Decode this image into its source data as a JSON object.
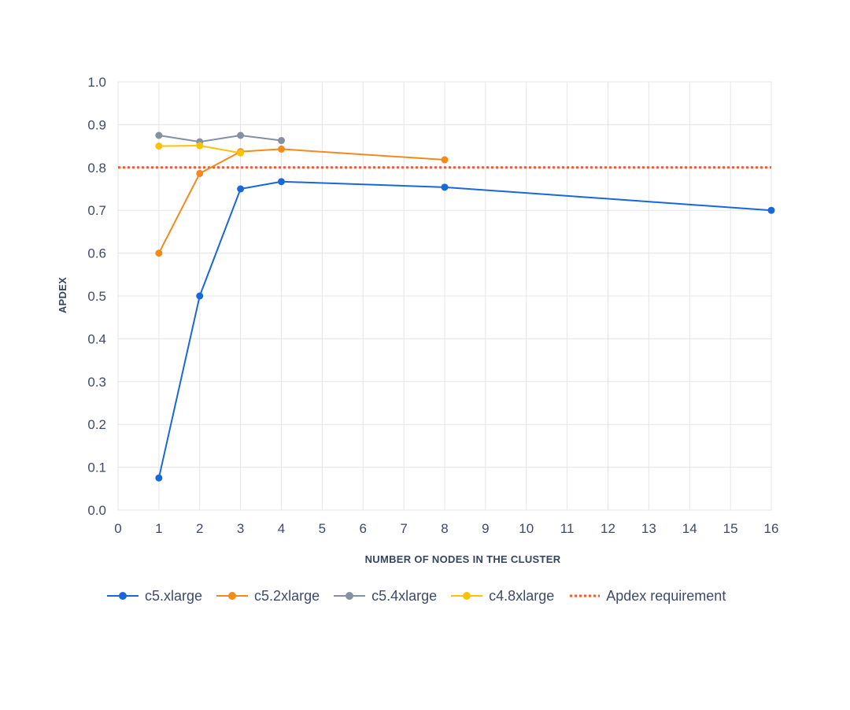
{
  "chart_data": {
    "type": "line",
    "xlabel": "NUMBER OF NODES IN THE CLUSTER",
    "ylabel": "APDEX",
    "x_ticks": [
      "0",
      "1",
      "2",
      "3",
      "4",
      "5",
      "6",
      "7",
      "8",
      "9",
      "10",
      "11",
      "12",
      "13",
      "14",
      "15",
      "16"
    ],
    "y_ticks": [
      "0.0",
      "0.1",
      "0.2",
      "0.3",
      "0.4",
      "0.5",
      "0.6",
      "0.7",
      "0.8",
      "0.9",
      "1.0"
    ],
    "ylim": [
      0,
      1
    ],
    "grid": true,
    "legend_position": "bottom",
    "series": [
      {
        "name": "c5.xlarge",
        "color": "#1868db",
        "x": [
          1,
          2,
          3,
          4,
          8,
          16
        ],
        "values": [
          0.075,
          0.5,
          0.75,
          0.767,
          0.754,
          0.7
        ]
      },
      {
        "name": "c5.2xlarge",
        "color": "#f5891b",
        "x": [
          1,
          2,
          3,
          4,
          8
        ],
        "values": [
          0.6,
          0.786,
          0.837,
          0.843,
          0.818
        ]
      },
      {
        "name": "c5.4xlarge",
        "color": "#8590a2",
        "x": [
          1,
          2,
          3,
          4
        ],
        "values": [
          0.875,
          0.86,
          0.875,
          0.863
        ]
      },
      {
        "name": "c4.8xlarge",
        "color": "#fbc200",
        "x": [
          1,
          2,
          3
        ],
        "values": [
          0.85,
          0.851,
          0.834
        ]
      }
    ],
    "reference_line": {
      "name": "Apdex requirement",
      "value": 0.8,
      "color": "#f15b2a",
      "style": "dotted"
    }
  }
}
